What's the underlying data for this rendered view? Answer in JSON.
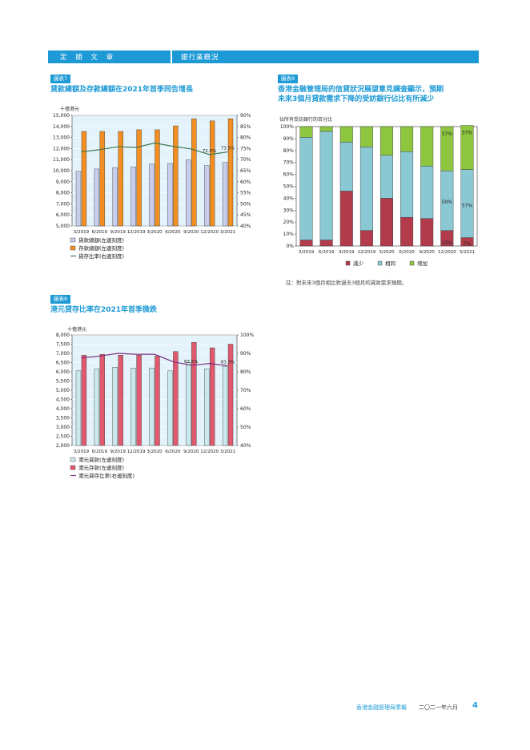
{
  "header": {
    "section": "定 期 文 章",
    "subsection": "銀行業概況"
  },
  "charts": [
    {
      "id": "c7",
      "tag": "圖表7",
      "title": "貸款總額及存款總額在2021年首季同告增長",
      "unit": "十億港元",
      "chart_data": {
        "type": "bar+line",
        "categories": [
          "3/2019",
          "6/2019",
          "9/2019",
          "12/2019",
          "3/2020",
          "6/2020",
          "9/2020",
          "12/2020",
          "3/2021"
        ],
        "left_axis": {
          "min": 5000,
          "max": 15000,
          "step": 1000
        },
        "right_axis": {
          "min": 40,
          "max": 90,
          "step": 5,
          "suffix": "%"
        },
        "series": [
          {
            "name": "貸款總額(左邊刻度)",
            "kind": "bar",
            "axis": "left",
            "color": "#c9cdec",
            "values": [
              9950,
              10150,
              10280,
              10350,
              10600,
              10650,
              10980,
              10450,
              10750
            ]
          },
          {
            "name": "存款總額(左邊刻度)",
            "kind": "bar",
            "axis": "left",
            "color": "#f28e22",
            "values": [
              13550,
              13550,
              13550,
              13700,
              13700,
              14050,
              14700,
              14500,
              14700
            ]
          },
          {
            "name": "貸存比率(右邊刻度)",
            "kind": "line",
            "axis": "right",
            "color": "#3f7a4e",
            "values": [
              73.5,
              74.5,
              75.8,
              75.5,
              77.5,
              76.0,
              74.8,
              72.3,
              73.5
            ]
          }
        ],
        "annotations": [
          {
            "index": 7,
            "text": "72.3%"
          },
          {
            "index": 8,
            "text": "73.5%"
          }
        ]
      }
    },
    {
      "id": "c8",
      "tag": "圖表8",
      "title": "港元貸存比率在2021年首季微跌",
      "unit": "十億港元",
      "chart_data": {
        "type": "bar+line",
        "categories": [
          "3/2019",
          "6/2019",
          "9/2019",
          "12/2019",
          "3/2020",
          "6/2020",
          "9/2020",
          "12/2020",
          "3/2021"
        ],
        "left_axis": {
          "min": 2000,
          "max": 8000,
          "step": 500
        },
        "right_axis": {
          "min": 40,
          "max": 100,
          "step": 10,
          "suffix": "%"
        },
        "series": [
          {
            "name": "港元貸款(左邊刻度)",
            "kind": "bar",
            "axis": "left",
            "color": "#cbe9ec",
            "values": [
              6050,
              6150,
              6250,
              6200,
              6200,
              6050,
              6500,
              6150,
              6300
            ]
          },
          {
            "name": "港元存款(左邊刻度)",
            "kind": "bar",
            "axis": "left",
            "color": "#e0596e",
            "values": [
              6900,
              6950,
              6900,
              6900,
              6850,
              7100,
              7600,
              7300,
              7500
            ]
          },
          {
            "name": "港元貸存比率(右邊刻度)",
            "kind": "line",
            "axis": "right",
            "color": "#7a2f7e",
            "values": [
              87.5,
              88.5,
              90.0,
              89.5,
              89.5,
              85.5,
              83.5,
              84.5,
              83.3
            ]
          }
        ],
        "annotations": [
          {
            "index": 6,
            "text": "83.5%"
          },
          {
            "index": 8,
            "text": "83.3%"
          }
        ]
      }
    },
    {
      "id": "c9",
      "tag": "圖表9",
      "title_line1": "香港金融管理局的信貸狀況展望意見調查顯示，預期",
      "title_line2": "未來3個月貸款需求下降的受訪銀行佔比有所減少",
      "unit": "佔所有受訪銀行的百分比",
      "note": "註：對未來3個月相比對過去3個月的貸款需求預期。",
      "chart_data": {
        "type": "stacked-bar",
        "categories": [
          "3/2019",
          "6/2019",
          "9/2019",
          "12/2019",
          "3/2020",
          "6/2020",
          "9/2020",
          "12/2020",
          "3/2021"
        ],
        "axis": {
          "min": 0,
          "max": 100,
          "step": 10,
          "suffix": "%"
        },
        "series": [
          {
            "name": "減少",
            "color": "#b23b4c",
            "values": [
              5,
              5,
              46,
              13,
              40,
              24,
              23,
              13,
              7
            ]
          },
          {
            "name": "相同",
            "color": "#8ac8d4",
            "values": [
              86,
              91,
              41,
              70,
              36,
              55,
              44,
              50,
              57
            ]
          },
          {
            "name": "增加",
            "color": "#8ec63f",
            "values": [
              9,
              4,
              13,
              17,
              24,
              21,
              33,
              37,
              37
            ]
          }
        ],
        "annotations": [
          {
            "index": 7,
            "series": 2,
            "text": "37%"
          },
          {
            "index": 8,
            "series": 2,
            "text": "37%"
          },
          {
            "index": 7,
            "series": 1,
            "text": "50%"
          },
          {
            "index": 8,
            "series": 1,
            "text": "57%"
          },
          {
            "index": 7,
            "series": 0,
            "text": "13%"
          },
          {
            "index": 8,
            "series": 0,
            "text": "7%"
          }
        ]
      }
    }
  ],
  "footer": {
    "text": "香港金融管理局季報",
    "date": "二〇二一年六月",
    "page": "4"
  }
}
